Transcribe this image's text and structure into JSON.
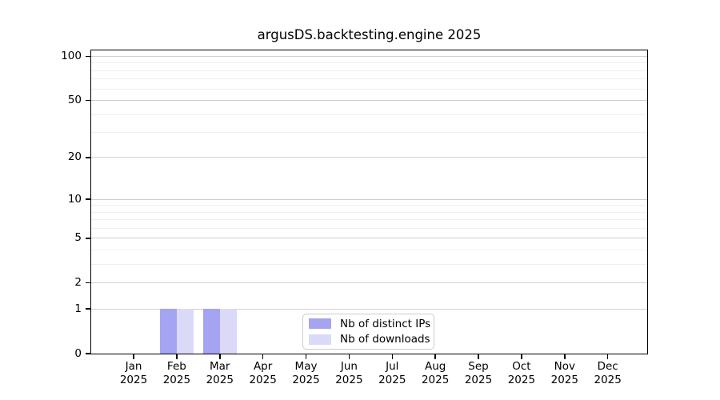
{
  "chart_data": {
    "type": "bar",
    "title": "argusDS.backtesting.engine 2025",
    "categories": [
      "Jan 2025",
      "Feb 2025",
      "Mar 2025",
      "Apr 2025",
      "May 2025",
      "Jun 2025",
      "Jul 2025",
      "Aug 2025",
      "Sep 2025",
      "Oct 2025",
      "Nov 2025",
      "Dec 2025"
    ],
    "series": [
      {
        "name": "Nb of distinct IPs",
        "color": "#a4a4f2",
        "values": [
          0,
          1,
          1,
          0,
          0,
          0,
          0,
          0,
          0,
          0,
          0,
          0
        ]
      },
      {
        "name": "Nb of downloads",
        "color": "#dadaf8",
        "values": [
          0,
          1,
          1,
          0,
          0,
          0,
          0,
          0,
          0,
          0,
          0,
          0
        ]
      }
    ],
    "xlabel": "",
    "ylabel": "",
    "yscale": "log1p",
    "ylim": [
      0,
      110
    ],
    "y_major_ticks": [
      0,
      1,
      2,
      5,
      10,
      20,
      50,
      100
    ],
    "y_minor_ticks": [
      3,
      4,
      6,
      7,
      8,
      9,
      30,
      40,
      60,
      70,
      80,
      90
    ],
    "grid": "horizontal",
    "legend_position": "lower center"
  }
}
